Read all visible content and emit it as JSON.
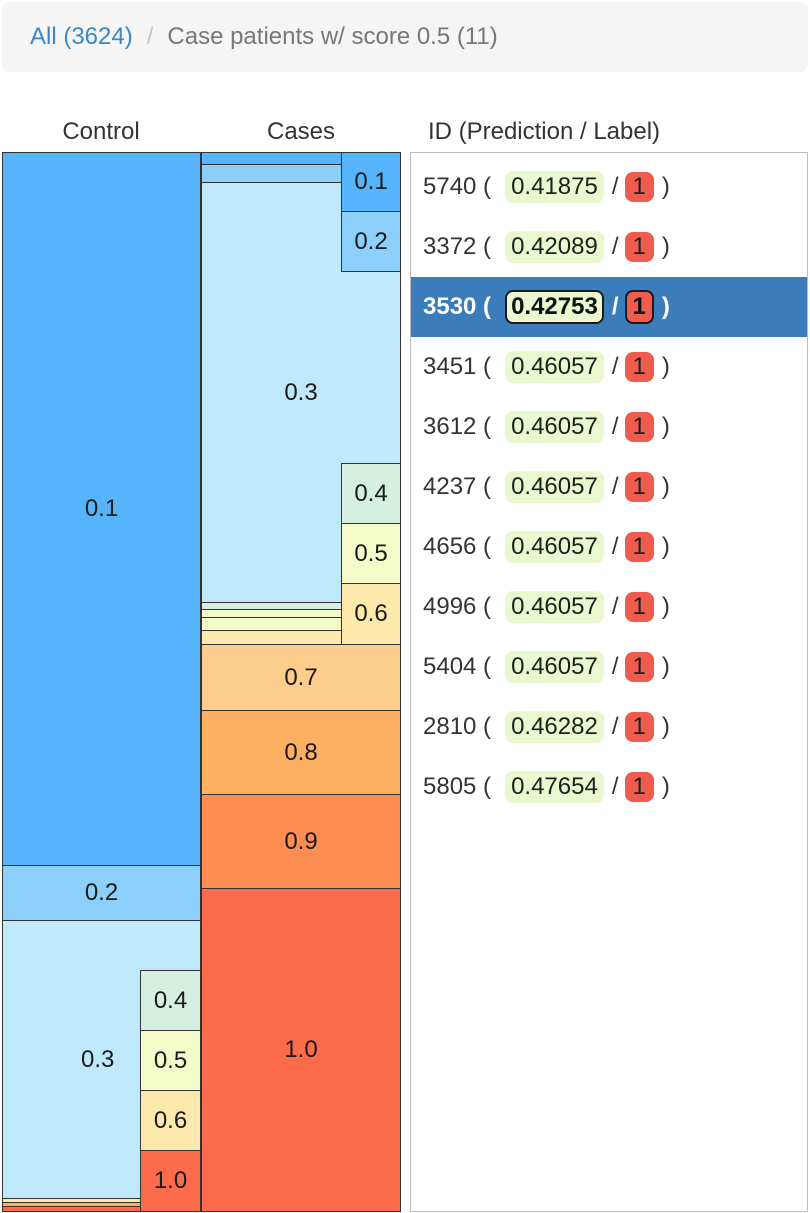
{
  "breadcrumb": {
    "root_label": "All (3624)",
    "separator": "/",
    "current_label": "Case patients w/ score 0.5 (11)"
  },
  "headers": {
    "control": "Control",
    "cases": "Cases",
    "ids": "ID (Prediction / Label)"
  },
  "colors": {
    "bin_0_1": "#55b4fc",
    "bin_0_2": "#8dcffb",
    "bin_0_3": "#c0e8fb",
    "bin_0_4": "#d5efe1",
    "bin_0_5": "#f3fbc8",
    "bin_0_6": "#fde9ab",
    "bin_0_7": "#fdce8b",
    "bin_0_8": "#fdaf62",
    "bin_0_9": "#fd8d50",
    "bin_1_0": "#fd6c4a",
    "selected_row": "#3a7dba",
    "prediction_pill": "#eaf8cf",
    "label_badge": "#ef5b4c"
  },
  "control_bins": [
    {
      "label": "0.1",
      "color_key": "bin_0_1"
    },
    {
      "label": "0.2",
      "color_key": "bin_0_2"
    },
    {
      "label": "0.3",
      "color_key": "bin_0_3"
    }
  ],
  "control_sub_bins": [
    {
      "label": "0.4",
      "color_key": "bin_0_4"
    },
    {
      "label": "0.5",
      "color_key": "bin_0_5"
    },
    {
      "label": "0.6",
      "color_key": "bin_0_6"
    },
    {
      "label": "1.0",
      "color_key": "bin_1_0"
    }
  ],
  "cases_bins": [
    {
      "label": "0.3",
      "color_key": "bin_0_3"
    },
    {
      "label": "0.7",
      "color_key": "bin_0_7"
    },
    {
      "label": "0.8",
      "color_key": "bin_0_8"
    },
    {
      "label": "0.9",
      "color_key": "bin_0_9"
    },
    {
      "label": "1.0",
      "color_key": "bin_1_0"
    }
  ],
  "cases_sub_bins": [
    {
      "label": "0.1",
      "color_key": "bin_0_1"
    },
    {
      "label": "0.2",
      "color_key": "bin_0_2"
    },
    {
      "label": "0.4",
      "color_key": "bin_0_4"
    },
    {
      "label": "0.5",
      "color_key": "bin_0_5"
    },
    {
      "label": "0.6",
      "color_key": "bin_0_6"
    }
  ],
  "patients": [
    {
      "id": "5740",
      "prediction": "0.41875",
      "label": "1",
      "selected": false
    },
    {
      "id": "3372",
      "prediction": "0.42089",
      "label": "1",
      "selected": false
    },
    {
      "id": "3530",
      "prediction": "0.42753",
      "label": "1",
      "selected": true
    },
    {
      "id": "3451",
      "prediction": "0.46057",
      "label": "1",
      "selected": false
    },
    {
      "id": "3612",
      "prediction": "0.46057",
      "label": "1",
      "selected": false
    },
    {
      "id": "4237",
      "prediction": "0.46057",
      "label": "1",
      "selected": false
    },
    {
      "id": "4656",
      "prediction": "0.46057",
      "label": "1",
      "selected": false
    },
    {
      "id": "4996",
      "prediction": "0.46057",
      "label": "1",
      "selected": false
    },
    {
      "id": "5404",
      "prediction": "0.46057",
      "label": "1",
      "selected": false
    },
    {
      "id": "2810",
      "prediction": "0.46282",
      "label": "1",
      "selected": false
    },
    {
      "id": "5805",
      "prediction": "0.47654",
      "label": "1",
      "selected": false
    }
  ]
}
